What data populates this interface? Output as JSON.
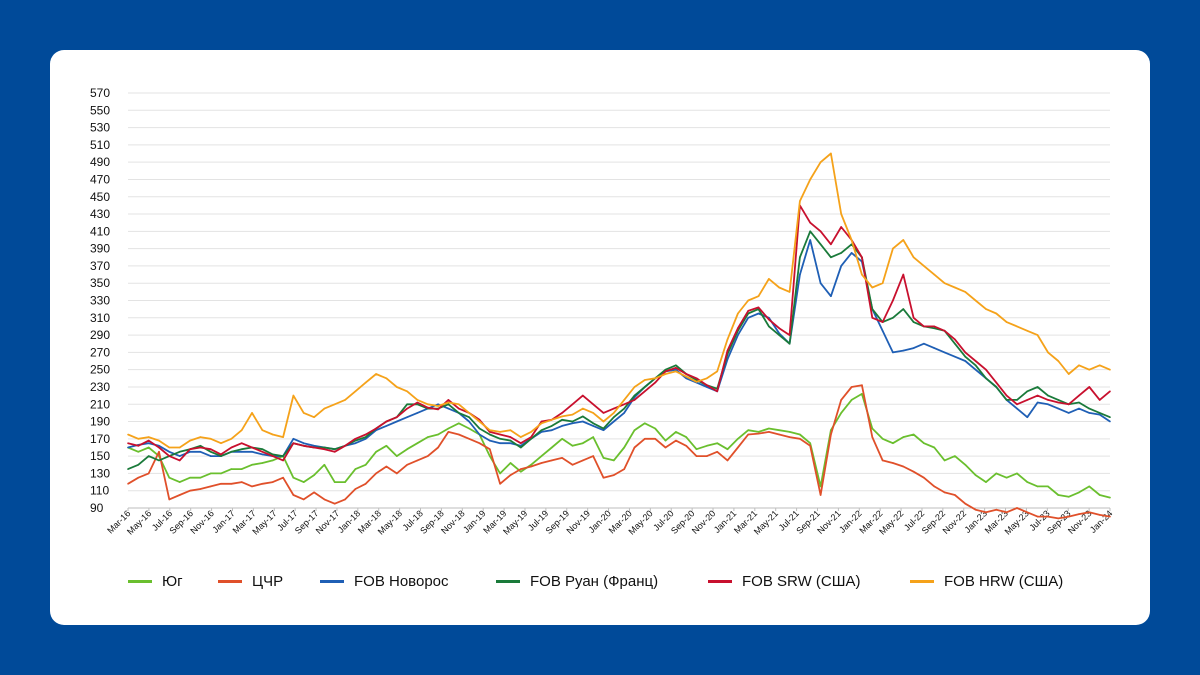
{
  "chart_data": {
    "type": "line",
    "title": "",
    "xlabel": "",
    "ylabel": "",
    "ylim": [
      90,
      570
    ],
    "yticks": [
      90,
      110,
      130,
      150,
      170,
      190,
      210,
      230,
      250,
      270,
      290,
      310,
      330,
      350,
      370,
      390,
      410,
      430,
      450,
      470,
      490,
      510,
      530,
      550,
      570
    ],
    "xtick_labels": [
      "Mar-16",
      "May-16",
      "Jul-16",
      "Sep-16",
      "Nov-16",
      "Jan-17",
      "Mar-17",
      "May-17",
      "Jul-17",
      "Sep-17",
      "Nov-17",
      "Jan-18",
      "Mar-18",
      "May-18",
      "Jul-18",
      "Sep-18",
      "Nov-18",
      "Jan-19",
      "Mar-19",
      "May-19",
      "Jul-19",
      "Sep-19",
      "Nov-19",
      "Jan-20",
      "Mar-20",
      "May-20",
      "Jul-20",
      "Sep-20",
      "Nov-20",
      "Jan-21",
      "Mar-21",
      "May-21",
      "Jul-21",
      "Sep-21",
      "Nov-21",
      "Jan-22",
      "Mar-22",
      "May-22",
      "Jul-22",
      "Sep-22",
      "Nov-22",
      "Jan-23",
      "Mar-23",
      "May-23",
      "Jul-23",
      "Sep-23",
      "Nov-23",
      "Jan-24"
    ],
    "x": [
      0,
      1,
      2,
      3,
      4,
      5,
      6,
      7,
      8,
      9,
      10,
      11,
      12,
      13,
      14,
      15,
      16,
      17,
      18,
      19,
      20,
      21,
      22,
      23,
      24,
      25,
      26,
      27,
      28,
      29,
      30,
      31,
      32,
      33,
      34,
      35,
      36,
      37,
      38,
      39,
      40,
      41,
      42,
      43,
      44,
      45,
      46,
      47,
      48,
      49,
      50,
      51,
      52,
      53,
      54,
      55,
      56,
      57,
      58,
      59,
      60,
      61,
      62,
      63,
      64,
      65,
      66,
      67,
      68,
      69,
      70,
      71,
      72,
      73,
      74,
      75,
      76,
      77,
      78,
      79,
      80,
      81,
      82,
      83,
      84,
      85,
      86,
      87,
      88,
      89,
      90,
      91,
      92,
      93,
      94,
      95
    ],
    "series": [
      {
        "name": "Юг",
        "color": "#6abf2e",
        "values": [
          160,
          155,
          160,
          150,
          125,
          120,
          125,
          125,
          130,
          130,
          135,
          135,
          140,
          142,
          145,
          150,
          125,
          120,
          128,
          140,
          120,
          120,
          135,
          140,
          155,
          162,
          150,
          158,
          165,
          172,
          175,
          182,
          188,
          182,
          175,
          150,
          130,
          142,
          132,
          140,
          150,
          160,
          170,
          162,
          165,
          172,
          148,
          145,
          160,
          180,
          188,
          182,
          168,
          178,
          172,
          158,
          162,
          165,
          158,
          170,
          180,
          178,
          182,
          180,
          178,
          175,
          165,
          115,
          180,
          200,
          215,
          222,
          182,
          170,
          165,
          172,
          175,
          165,
          160,
          145,
          150,
          140,
          128,
          120,
          130,
          125,
          130,
          120,
          115,
          115,
          105,
          103,
          108,
          115,
          105,
          102
        ]
      },
      {
        "name": "ЦЧР",
        "color": "#e0502a",
        "values": [
          118,
          125,
          130,
          155,
          100,
          105,
          110,
          112,
          115,
          118,
          118,
          120,
          115,
          118,
          120,
          125,
          105,
          100,
          108,
          100,
          95,
          100,
          112,
          118,
          130,
          138,
          130,
          140,
          145,
          150,
          160,
          178,
          175,
          170,
          165,
          158,
          118,
          128,
          135,
          138,
          142,
          145,
          148,
          140,
          145,
          150,
          125,
          128,
          135,
          160,
          170,
          170,
          160,
          168,
          162,
          150,
          150,
          155,
          145,
          160,
          175,
          176,
          178,
          175,
          172,
          170,
          162,
          105,
          175,
          215,
          230,
          232,
          172,
          145,
          142,
          138,
          132,
          125,
          115,
          108,
          105,
          95,
          88,
          85,
          88,
          85,
          90,
          85,
          80,
          80,
          78,
          80,
          83,
          85,
          82,
          80
        ]
      },
      {
        "name": "FOB Новорос",
        "color": "#1f5fb5",
        "values": [
          160,
          163,
          165,
          162,
          155,
          150,
          155,
          155,
          150,
          150,
          155,
          155,
          155,
          152,
          150,
          150,
          170,
          165,
          162,
          160,
          158,
          162,
          165,
          170,
          180,
          185,
          190,
          195,
          200,
          205,
          210,
          205,
          200,
          190,
          175,
          168,
          165,
          165,
          162,
          170,
          178,
          180,
          185,
          188,
          190,
          185,
          180,
          190,
          200,
          218,
          230,
          240,
          248,
          250,
          240,
          235,
          230,
          225,
          262,
          290,
          310,
          315,
          310,
          292,
          280,
          360,
          400,
          350,
          335,
          370,
          385,
          375,
          320,
          295,
          270,
          272,
          275,
          280,
          275,
          270,
          265,
          260,
          250,
          240,
          230,
          215,
          205,
          195,
          212,
          210,
          205,
          200,
          205,
          200,
          198,
          190
        ]
      },
      {
        "name": "FOB Руан (Франц)",
        "color": "#1a7a3a",
        "values": [
          135,
          140,
          150,
          145,
          150,
          155,
          158,
          162,
          155,
          150,
          155,
          158,
          160,
          158,
          152,
          150,
          165,
          162,
          160,
          160,
          158,
          162,
          168,
          172,
          182,
          190,
          195,
          210,
          210,
          205,
          205,
          210,
          200,
          195,
          182,
          175,
          170,
          168,
          160,
          170,
          180,
          185,
          192,
          190,
          196,
          188,
          182,
          195,
          205,
          220,
          230,
          240,
          250,
          255,
          245,
          238,
          232,
          228,
          268,
          295,
          315,
          320,
          300,
          290,
          280,
          380,
          410,
          395,
          380,
          385,
          395,
          380,
          320,
          305,
          310,
          320,
          305,
          300,
          298,
          295,
          280,
          265,
          255,
          240,
          230,
          215,
          215,
          225,
          230,
          220,
          215,
          210,
          212,
          205,
          200,
          195
        ]
      },
      {
        "name": "FOB SRW (США)",
        "color": "#c8102e",
        "values": [
          165,
          162,
          168,
          160,
          150,
          145,
          158,
          160,
          158,
          152,
          160,
          165,
          160,
          155,
          150,
          145,
          165,
          162,
          160,
          158,
          155,
          162,
          170,
          175,
          182,
          190,
          195,
          205,
          212,
          206,
          204,
          215,
          205,
          200,
          192,
          178,
          175,
          172,
          165,
          172,
          190,
          192,
          200,
          210,
          220,
          210,
          200,
          205,
          210,
          215,
          225,
          235,
          248,
          252,
          245,
          240,
          232,
          225,
          272,
          298,
          318,
          322,
          308,
          298,
          290,
          440,
          420,
          410,
          395,
          415,
          400,
          380,
          310,
          305,
          330,
          360,
          310,
          300,
          300,
          295,
          285,
          270,
          260,
          250,
          235,
          220,
          210,
          215,
          220,
          215,
          212,
          210,
          220,
          230,
          215,
          225
        ]
      },
      {
        "name": "FOB HRW (США)",
        "color": "#f5a21a",
        "values": [
          175,
          170,
          172,
          168,
          160,
          160,
          168,
          172,
          170,
          165,
          170,
          180,
          200,
          180,
          175,
          172,
          220,
          200,
          195,
          205,
          210,
          215,
          225,
          235,
          245,
          240,
          230,
          225,
          215,
          210,
          208,
          212,
          210,
          200,
          190,
          180,
          178,
          180,
          172,
          178,
          188,
          192,
          196,
          198,
          205,
          200,
          190,
          200,
          215,
          230,
          238,
          240,
          245,
          248,
          242,
          236,
          240,
          248,
          285,
          315,
          330,
          335,
          355,
          345,
          340,
          445,
          470,
          490,
          500,
          430,
          400,
          360,
          345,
          350,
          390,
          400,
          380,
          370,
          360,
          350,
          345,
          340,
          330,
          320,
          315,
          305,
          300,
          295,
          290,
          270,
          260,
          245,
          255,
          250,
          255,
          250
        ]
      }
    ]
  }
}
